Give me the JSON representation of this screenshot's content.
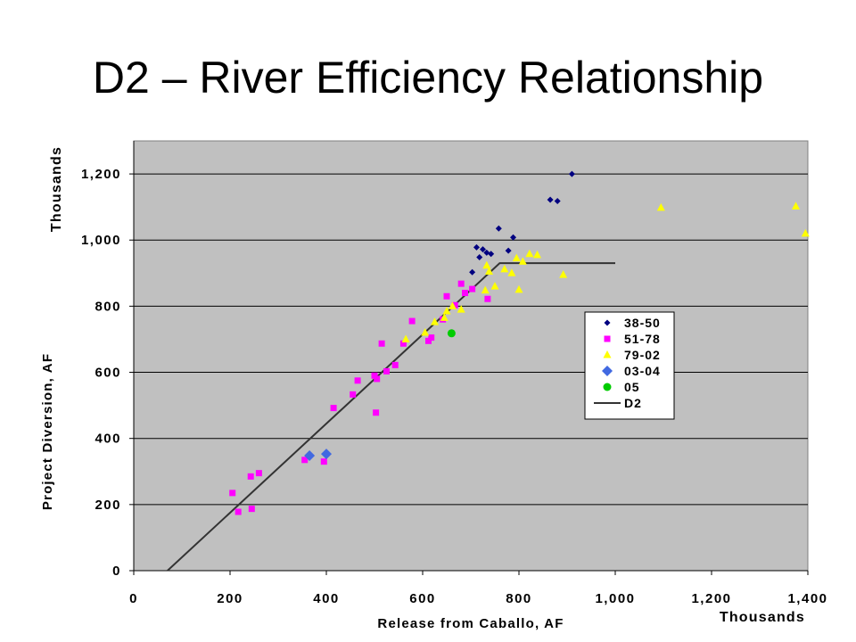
{
  "title": "D2 – River Efficiency Relationship",
  "chart_data": {
    "type": "scatter",
    "title": "D2 – River Efficiency Relationship",
    "xlabel": "Release from Caballo, AF",
    "ylabel": "Project Diversion, AF",
    "x_multiplier_label": "Thousands",
    "y_multiplier_label": "Thousands",
    "xlim": [
      0,
      1400
    ],
    "ylim": [
      0,
      1300
    ],
    "x_ticks": [
      0,
      200,
      400,
      600,
      800,
      1000,
      1200,
      1400
    ],
    "x_tick_labels": [
      "0",
      "200",
      "400",
      "600",
      "800",
      "1,000",
      "1,200",
      "1,400"
    ],
    "y_ticks": [
      0,
      200,
      400,
      600,
      800,
      1000,
      1200
    ],
    "y_tick_labels": [
      "0",
      "200",
      "400",
      "600",
      "800",
      "1,000",
      "1,200"
    ],
    "grid": "horizontal",
    "legend_position": "right",
    "colors": {
      "plot_background": "#c0c0c0",
      "grid": "#000000",
      "series_38_50": "#000080",
      "series_51_78": "#ff00ff",
      "series_79_02": "#ffff00",
      "series_03_04": "#4169e1",
      "series_05": "#00cc00",
      "series_D2": "#333333"
    },
    "series": [
      {
        "name": "38-50",
        "marker": "small-diamond",
        "points": [
          [
            910,
            1200
          ],
          [
            865,
            1122
          ],
          [
            880,
            1118
          ],
          [
            758,
            1035
          ],
          [
            788,
            1008
          ],
          [
            712,
            978
          ],
          [
            725,
            972
          ],
          [
            733,
            962
          ],
          [
            718,
            948
          ],
          [
            742,
            958
          ],
          [
            778,
            968
          ],
          [
            703,
            903
          ]
        ]
      },
      {
        "name": "51-78",
        "marker": "square",
        "points": [
          [
            205,
            235
          ],
          [
            217,
            178
          ],
          [
            243,
            285
          ],
          [
            245,
            187
          ],
          [
            260,
            295
          ],
          [
            355,
            335
          ],
          [
            395,
            330
          ],
          [
            415,
            492
          ],
          [
            455,
            533
          ],
          [
            465,
            575
          ],
          [
            500,
            590
          ],
          [
            505,
            580
          ],
          [
            503,
            478
          ],
          [
            515,
            687
          ],
          [
            525,
            603
          ],
          [
            543,
            622
          ],
          [
            560,
            687
          ],
          [
            578,
            755
          ],
          [
            612,
            695
          ],
          [
            618,
            705
          ],
          [
            642,
            760
          ],
          [
            650,
            830
          ],
          [
            667,
            803
          ],
          [
            680,
            868
          ],
          [
            688,
            840
          ],
          [
            703,
            852
          ],
          [
            735,
            822
          ]
        ]
      },
      {
        "name": "79-02",
        "marker": "triangle",
        "points": [
          [
            565,
            700
          ],
          [
            605,
            720
          ],
          [
            625,
            752
          ],
          [
            645,
            765
          ],
          [
            650,
            785
          ],
          [
            662,
            800
          ],
          [
            680,
            790
          ],
          [
            730,
            848
          ],
          [
            733,
            923
          ],
          [
            738,
            905
          ],
          [
            750,
            860
          ],
          [
            770,
            912
          ],
          [
            785,
            900
          ],
          [
            795,
            945
          ],
          [
            800,
            850
          ],
          [
            808,
            935
          ],
          [
            822,
            958
          ],
          [
            838,
            955
          ],
          [
            892,
            895
          ],
          [
            1095,
            1098
          ],
          [
            1375,
            1102
          ],
          [
            1395,
            1020
          ]
        ]
      },
      {
        "name": "03-04",
        "marker": "diamond",
        "points": [
          [
            365,
            348
          ],
          [
            400,
            353
          ]
        ]
      },
      {
        "name": "05",
        "marker": "circle",
        "points": [
          [
            660,
            718
          ]
        ]
      },
      {
        "name": "D2",
        "marker": "line",
        "points": [
          [
            70,
            0
          ],
          [
            760,
            930
          ],
          [
            1000,
            930
          ]
        ]
      }
    ]
  }
}
